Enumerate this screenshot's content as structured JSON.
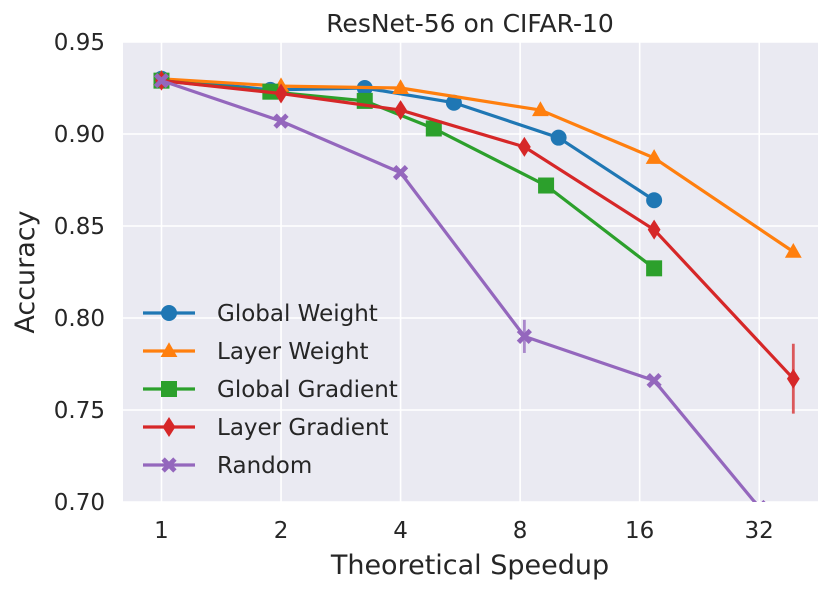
{
  "chart_data": {
    "type": "line",
    "title": "ResNet-56 on CIFAR-10",
    "xlabel": "Theoretical Speedup",
    "ylabel": "Accuracy",
    "x_scale": "log2",
    "xlim": [
      0.8,
      45
    ],
    "ylim": [
      0.7,
      0.95
    ],
    "x_ticks": [
      1,
      2,
      4,
      8,
      16,
      32
    ],
    "x_tick_labels": [
      "1",
      "2",
      "4",
      "8",
      "16",
      "32"
    ],
    "y_ticks": [
      0.7,
      0.75,
      0.8,
      0.85,
      0.9,
      0.95
    ],
    "y_tick_labels": [
      "0.70",
      "0.75",
      "0.80",
      "0.85",
      "0.90",
      "0.95"
    ],
    "grid": true,
    "legend_position": "lower-left",
    "series": [
      {
        "name": "Global Weight",
        "color": "#1f77b4",
        "marker": "circle",
        "x": [
          1,
          1.88,
          3.25,
          5.45,
          10.0,
          17.4
        ],
        "y": [
          0.93,
          0.924,
          0.925,
          0.917,
          0.898,
          0.864
        ],
        "err": [
          0,
          0,
          0,
          0,
          0,
          0
        ]
      },
      {
        "name": "Layer Weight",
        "color": "#ff7f0e",
        "marker": "triangle",
        "x": [
          1,
          2.0,
          4.0,
          9.0,
          17.4,
          39.0
        ],
        "y": [
          0.93,
          0.926,
          0.925,
          0.913,
          0.887,
          0.836
        ],
        "err": [
          0,
          0,
          0,
          0,
          0,
          0
        ]
      },
      {
        "name": "Global Gradient",
        "color": "#2ca02c",
        "marker": "square",
        "x": [
          1,
          1.88,
          3.25,
          4.85,
          9.3,
          17.4
        ],
        "y": [
          0.929,
          0.923,
          0.918,
          0.903,
          0.872,
          0.827
        ],
        "err": [
          0,
          0,
          0,
          0,
          0.002,
          0.002
        ]
      },
      {
        "name": "Layer Gradient",
        "color": "#d62728",
        "marker": "diamond",
        "x": [
          1,
          2.0,
          4.0,
          8.2,
          17.4,
          39.0
        ],
        "y": [
          0.929,
          0.922,
          0.913,
          0.893,
          0.848,
          0.767
        ],
        "err": [
          0,
          0,
          0,
          0,
          0,
          0.019
        ]
      },
      {
        "name": "Random",
        "color": "#9467bd",
        "marker": "x",
        "x": [
          1,
          2.0,
          4.0,
          8.2,
          17.4,
          32.0
        ],
        "y": [
          0.929,
          0.907,
          0.879,
          0.79,
          0.766,
          0.697
        ],
        "err": [
          0,
          0,
          0,
          0.009,
          0,
          0
        ]
      }
    ]
  }
}
